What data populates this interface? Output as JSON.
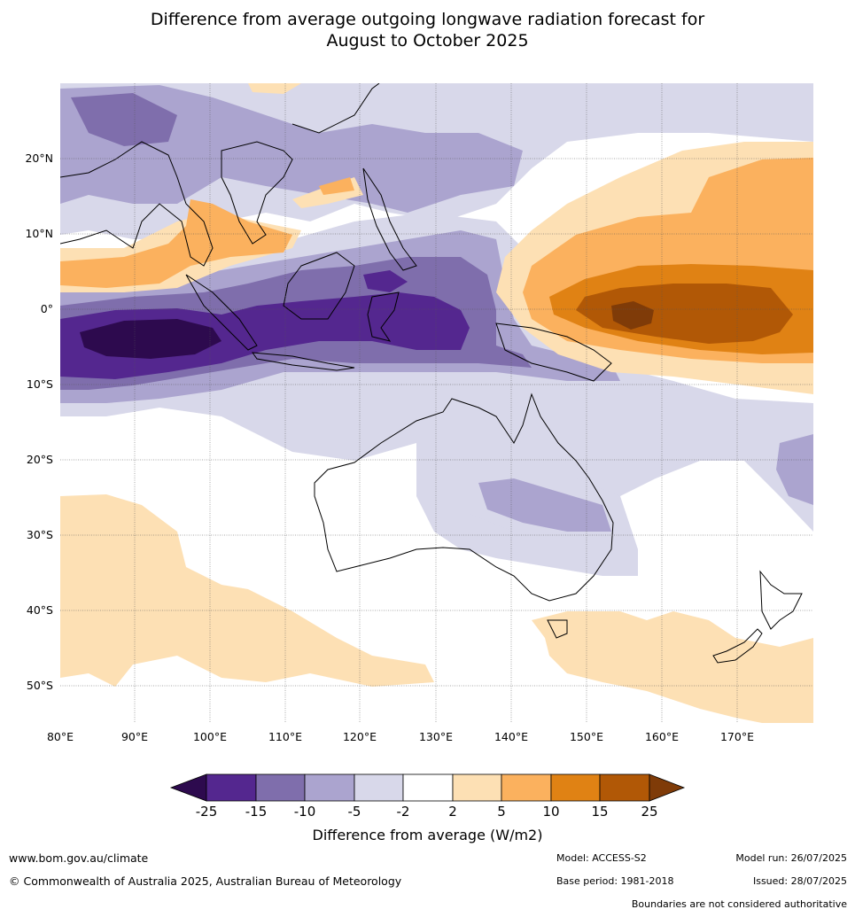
{
  "title_line1": "Difference from average outgoing longwave radiation forecast for",
  "title_line2": "August to October 2025",
  "lat_ticks": [
    "20°N",
    "10°N",
    "0°",
    "10°S",
    "20°S",
    "30°S",
    "40°S",
    "50°S"
  ],
  "lon_ticks": [
    "80°E",
    "90°E",
    "100°E",
    "110°E",
    "120°E",
    "130°E",
    "140°E",
    "150°E",
    "160°E",
    "170°E"
  ],
  "colorbar": {
    "label": "Difference from average (W/m2)",
    "ticks": [
      "-25",
      "-15",
      "-10",
      "-5",
      "-2",
      "2",
      "5",
      "10",
      "15",
      "25"
    ],
    "colors": {
      "lt_neg25": "#2d0a4e",
      "neg25_neg15": "#54278f",
      "neg15_neg10": "#7f6eac",
      "neg10_neg5": "#aba4cf",
      "neg5_neg2": "#d8d8ea",
      "neg2_2": "#ffffff",
      "pos2_5": "#fde0b4",
      "pos5_10": "#fbb15e",
      "pos10_15": "#e08214",
      "pos15_25": "#b15806",
      "gt_25": "#7f3b08"
    }
  },
  "footer": {
    "url": "www.bom.gov.au/climate",
    "copyright": "© Commonwealth of Australia 2025, Australian Bureau of Meteorology",
    "model": "Model: ACCESS-S2",
    "base_period": "Base period: 1981-2018",
    "model_run": "Model run: 26/07/2025",
    "issued": "Issued: 28/07/2025",
    "disclaimer": "Boundaries are not considered authoritative"
  }
}
